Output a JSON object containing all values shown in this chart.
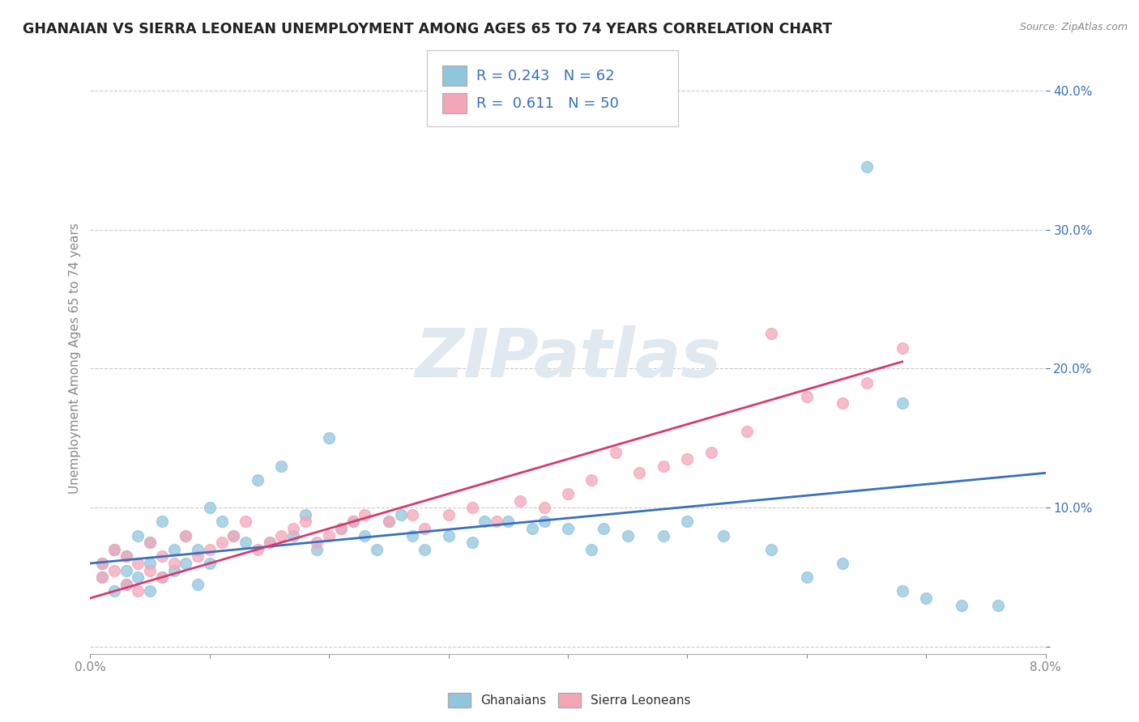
{
  "title": "GHANAIAN VS SIERRA LEONEAN UNEMPLOYMENT AMONG AGES 65 TO 74 YEARS CORRELATION CHART",
  "source": "Source: ZipAtlas.com",
  "ylabel": "Unemployment Among Ages 65 to 74 years",
  "xlim": [
    0.0,
    0.08
  ],
  "ylim": [
    -0.005,
    0.42
  ],
  "xticks": [
    0.0,
    0.01,
    0.02,
    0.03,
    0.04,
    0.05,
    0.06,
    0.07,
    0.08
  ],
  "xticklabels": [
    "0.0%",
    "",
    "",
    "",
    "",
    "",
    "",
    "",
    "8.0%"
  ],
  "yticks": [
    0.0,
    0.1,
    0.2,
    0.3,
    0.4
  ],
  "yticklabels": [
    "",
    "10.0%",
    "20.0%",
    "30.0%",
    "40.0%"
  ],
  "ghanaian_R": 0.243,
  "ghanaian_N": 62,
  "sierraleonean_R": 0.611,
  "sierraleonean_N": 50,
  "blue_scatter_color": "#92c5de",
  "pink_scatter_color": "#f4a6b8",
  "blue_line_color": "#3a6fbe",
  "pink_line_color": "#d63a6e",
  "legend_label_blue": "Ghanaians",
  "legend_label_pink": "Sierra Leoneans",
  "legend_text_color": "#3a6fbe",
  "watermark": "ZIPatlas",
  "background_color": "#ffffff",
  "grid_color": "#cccccc",
  "title_color": "#222222",
  "blue_x": [
    0.001,
    0.001,
    0.002,
    0.002,
    0.003,
    0.003,
    0.003,
    0.004,
    0.004,
    0.005,
    0.005,
    0.005,
    0.006,
    0.006,
    0.007,
    0.007,
    0.008,
    0.008,
    0.009,
    0.009,
    0.01,
    0.01,
    0.011,
    0.012,
    0.013,
    0.014,
    0.015,
    0.016,
    0.017,
    0.018,
    0.019,
    0.02,
    0.021,
    0.022,
    0.023,
    0.024,
    0.025,
    0.026,
    0.027,
    0.028,
    0.03,
    0.032,
    0.033,
    0.035,
    0.037,
    0.038,
    0.04,
    0.042,
    0.043,
    0.045,
    0.048,
    0.05,
    0.053,
    0.057,
    0.06,
    0.063,
    0.065,
    0.068,
    0.068,
    0.07,
    0.073,
    0.076
  ],
  "blue_y": [
    0.05,
    0.06,
    0.04,
    0.07,
    0.045,
    0.055,
    0.065,
    0.05,
    0.08,
    0.04,
    0.06,
    0.075,
    0.05,
    0.09,
    0.07,
    0.055,
    0.06,
    0.08,
    0.045,
    0.07,
    0.1,
    0.06,
    0.09,
    0.08,
    0.075,
    0.12,
    0.075,
    0.13,
    0.08,
    0.095,
    0.07,
    0.15,
    0.085,
    0.09,
    0.08,
    0.07,
    0.09,
    0.095,
    0.08,
    0.07,
    0.08,
    0.075,
    0.09,
    0.09,
    0.085,
    0.09,
    0.085,
    0.07,
    0.085,
    0.08,
    0.08,
    0.09,
    0.08,
    0.07,
    0.05,
    0.06,
    0.345,
    0.04,
    0.175,
    0.035,
    0.03,
    0.03
  ],
  "pink_x": [
    0.001,
    0.001,
    0.002,
    0.002,
    0.003,
    0.003,
    0.004,
    0.004,
    0.005,
    0.005,
    0.006,
    0.006,
    0.007,
    0.008,
    0.009,
    0.01,
    0.011,
    0.012,
    0.013,
    0.014,
    0.015,
    0.016,
    0.017,
    0.018,
    0.019,
    0.02,
    0.021,
    0.022,
    0.023,
    0.025,
    0.027,
    0.028,
    0.03,
    0.032,
    0.034,
    0.036,
    0.038,
    0.04,
    0.042,
    0.044,
    0.046,
    0.048,
    0.05,
    0.052,
    0.055,
    0.057,
    0.06,
    0.063,
    0.065,
    0.068
  ],
  "pink_y": [
    0.05,
    0.06,
    0.055,
    0.07,
    0.045,
    0.065,
    0.04,
    0.06,
    0.055,
    0.075,
    0.05,
    0.065,
    0.06,
    0.08,
    0.065,
    0.07,
    0.075,
    0.08,
    0.09,
    0.07,
    0.075,
    0.08,
    0.085,
    0.09,
    0.075,
    0.08,
    0.085,
    0.09,
    0.095,
    0.09,
    0.095,
    0.085,
    0.095,
    0.1,
    0.09,
    0.105,
    0.1,
    0.11,
    0.12,
    0.14,
    0.125,
    0.13,
    0.135,
    0.14,
    0.155,
    0.225,
    0.18,
    0.175,
    0.19,
    0.215
  ],
  "blue_trend_x": [
    0.0,
    0.08
  ],
  "blue_trend_y": [
    0.06,
    0.125
  ],
  "pink_trend_x": [
    0.0,
    0.068
  ],
  "pink_trend_y": [
    0.035,
    0.205
  ]
}
